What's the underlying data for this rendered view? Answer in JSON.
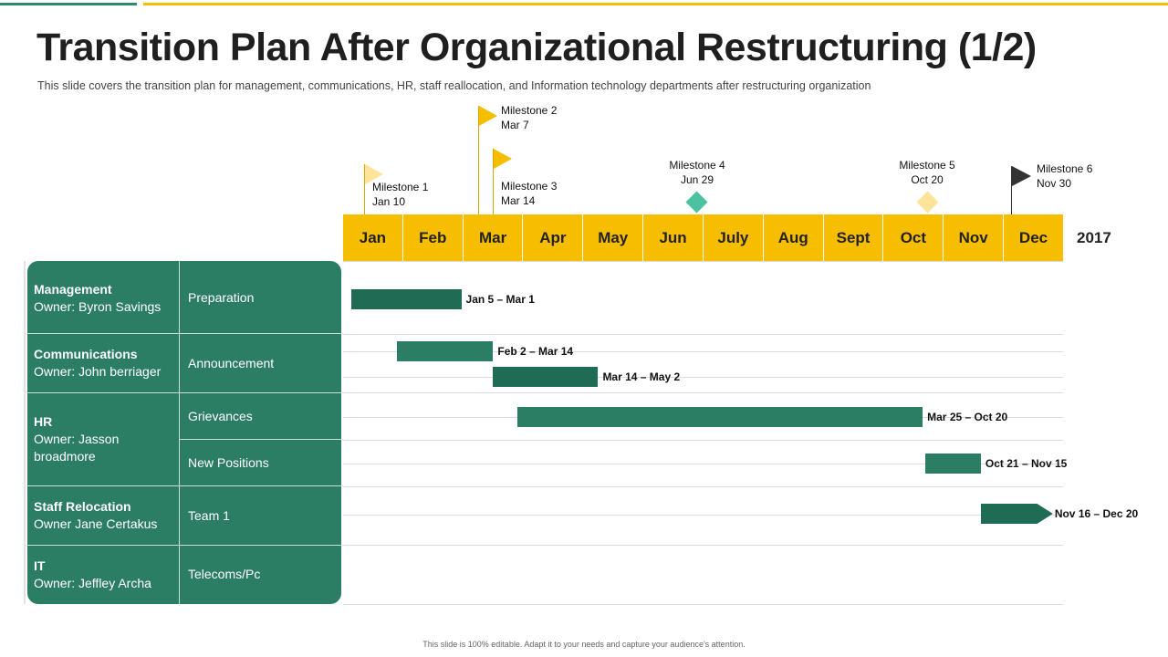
{
  "title": "Transition Plan After Organizational Restructuring (1/2)",
  "subtitle": "This slide covers the transition plan for management, communications, HR, staff reallocation, and Information technology departments after restructuring organization",
  "footer": "This slide is 100% editable. Adapt it to your needs and capture your audience's attention.",
  "colors": {
    "accent_yellow": "#f7bd00",
    "teal": "#2b7d63",
    "dark_green": "#1f6b54",
    "light_yellow": "#fde49a",
    "mint": "#4cc2a0",
    "dark_flag": "#333333"
  },
  "timeline": {
    "year": "2017",
    "months": [
      "Jan",
      "Feb",
      "Mar",
      "Apr",
      "May",
      "Jun",
      "July",
      "Aug",
      "Sept",
      "Oct",
      "Nov",
      "Dec"
    ]
  },
  "milestones": [
    {
      "name": "Milestone 1",
      "date": "Jan 10",
      "marker": "flag-light-icon"
    },
    {
      "name": "Milestone 2",
      "date": "Mar 7",
      "marker": "flag-yellow-icon"
    },
    {
      "name": "Milestone 3",
      "date": "Mar 14",
      "marker": "flag-yellow-icon"
    },
    {
      "name": "Milestone 4",
      "date": "Jun 29",
      "marker": "diamond-mint-icon"
    },
    {
      "name": "Milestone 5",
      "date": "Oct 20",
      "marker": "diamond-light-icon"
    },
    {
      "name": "Milestone 6",
      "date": "Nov 30",
      "marker": "flag-dark-icon"
    }
  ],
  "departments": [
    {
      "name": "Management",
      "owner": "Owner: Byron Savings"
    },
    {
      "name": "Communications",
      "owner": "Owner: John berriager"
    },
    {
      "name": "HR",
      "owner": "Owner: Jasson broadmore"
    },
    {
      "name": "Staff Relocation",
      "owner": "Owner Jane Certakus"
    },
    {
      "name": "IT",
      "owner": "Owner: Jeffley Archa"
    }
  ],
  "tasks": [
    {
      "label": "Preparation"
    },
    {
      "label": "Announcement"
    },
    {
      "label": "Grievances"
    },
    {
      "label": "New Positions"
    },
    {
      "label": "Team 1"
    },
    {
      "label": "Telecoms/Pc"
    }
  ],
  "bars": [
    {
      "label": "Jan 5 – Mar 1",
      "start": 0.13,
      "end": 1.97,
      "color": "#1f6b54"
    },
    {
      "label": "Feb 2 – Mar 14",
      "start": 0.9,
      "end": 2.5,
      "color": "#2b7d63"
    },
    {
      "label": "Mar 14 – May 2",
      "start": 2.5,
      "end": 4.25,
      "color": "#1f6b54"
    },
    {
      "label": "Mar 25 – Oct 20",
      "start": 2.9,
      "end": 9.66,
      "color": "#2b7d63"
    },
    {
      "label": "Oct 21 – Nov 15",
      "start": 9.7,
      "end": 10.63,
      "color": "#2b7d63"
    },
    {
      "label": "Nov 16 – Dec 20",
      "start": 10.63,
      "end": 11.83,
      "color": "#1f6b54",
      "arrow": true
    }
  ]
}
